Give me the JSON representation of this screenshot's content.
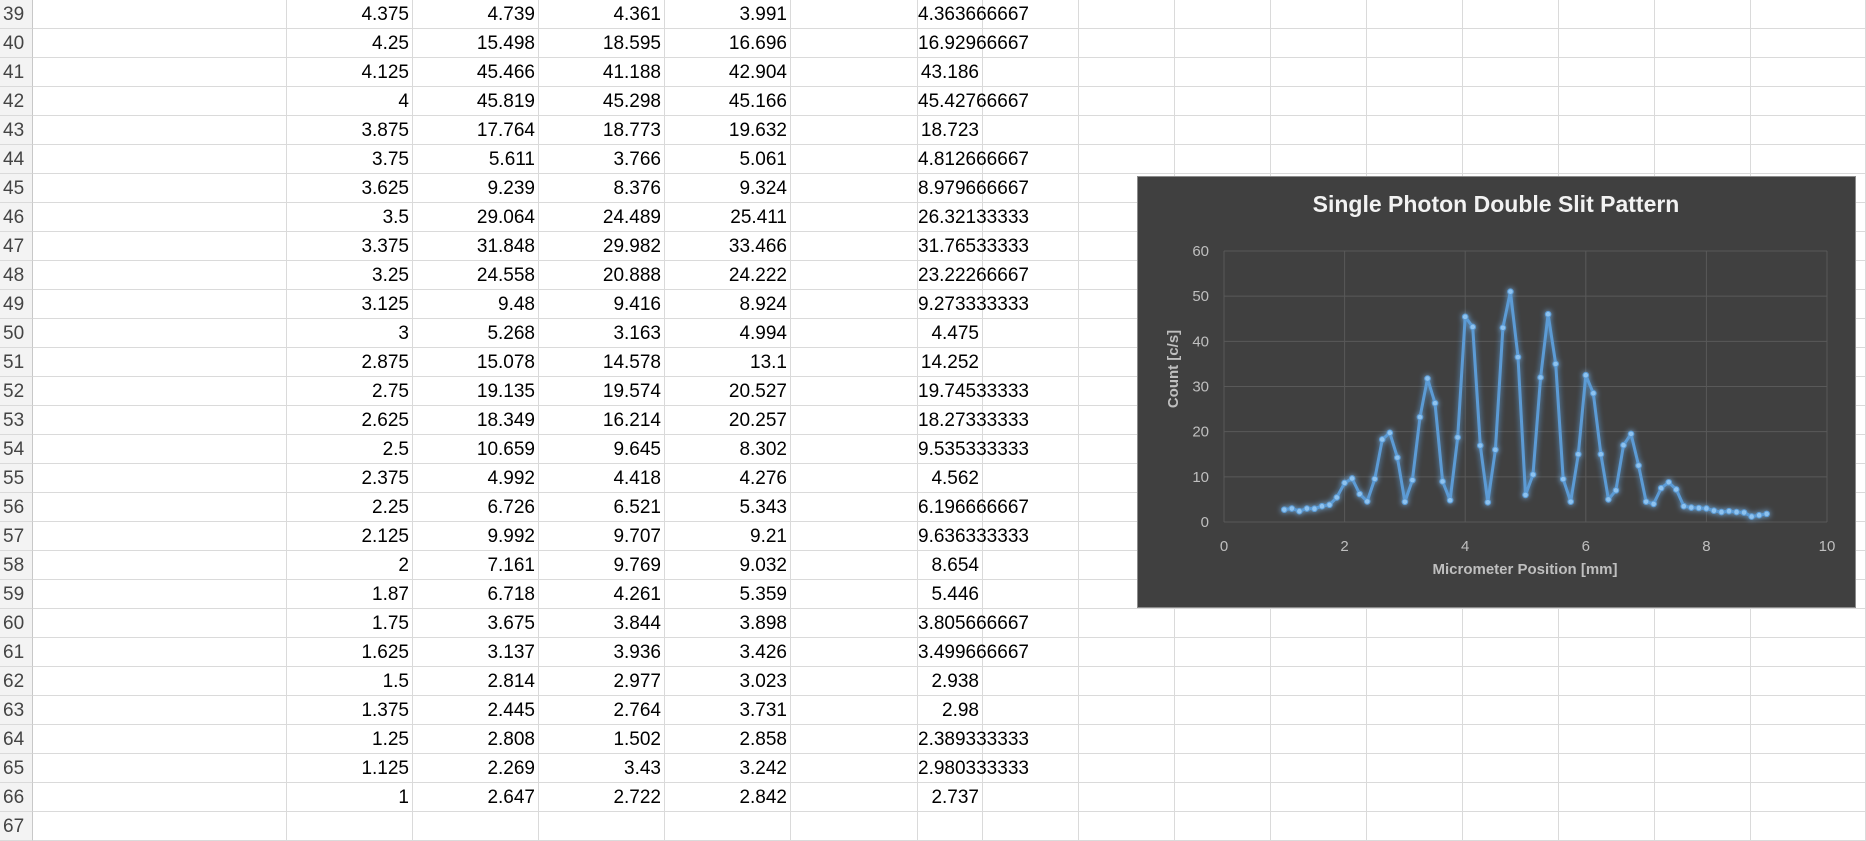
{
  "sheet": {
    "rows": [
      {
        "n": "39",
        "cells": [
          "",
          "4.375",
          "4.739",
          "4.361",
          "3.991",
          "",
          "4.363666667"
        ]
      },
      {
        "n": "40",
        "cells": [
          "",
          "4.25",
          "15.498",
          "18.595",
          "16.696",
          "",
          "16.92966667"
        ]
      },
      {
        "n": "41",
        "cells": [
          "",
          "4.125",
          "45.466",
          "41.188",
          "42.904",
          "",
          "43.186"
        ]
      },
      {
        "n": "42",
        "cells": [
          "",
          "4",
          "45.819",
          "45.298",
          "45.166",
          "",
          "45.42766667"
        ]
      },
      {
        "n": "43",
        "cells": [
          "",
          "3.875",
          "17.764",
          "18.773",
          "19.632",
          "",
          "18.723"
        ]
      },
      {
        "n": "44",
        "cells": [
          "",
          "3.75",
          "5.611",
          "3.766",
          "5.061",
          "",
          "4.812666667"
        ]
      },
      {
        "n": "45",
        "cells": [
          "",
          "3.625",
          "9.239",
          "8.376",
          "9.324",
          "",
          "8.979666667"
        ]
      },
      {
        "n": "46",
        "cells": [
          "",
          "3.5",
          "29.064",
          "24.489",
          "25.411",
          "",
          "26.32133333"
        ]
      },
      {
        "n": "47",
        "cells": [
          "",
          "3.375",
          "31.848",
          "29.982",
          "33.466",
          "",
          "31.76533333"
        ]
      },
      {
        "n": "48",
        "cells": [
          "",
          "3.25",
          "24.558",
          "20.888",
          "24.222",
          "",
          "23.22266667"
        ]
      },
      {
        "n": "49",
        "cells": [
          "",
          "3.125",
          "9.48",
          "9.416",
          "8.924",
          "",
          "9.273333333"
        ]
      },
      {
        "n": "50",
        "cells": [
          "",
          "3",
          "5.268",
          "3.163",
          "4.994",
          "",
          "4.475"
        ]
      },
      {
        "n": "51",
        "cells": [
          "",
          "2.875",
          "15.078",
          "14.578",
          "13.1",
          "",
          "14.252"
        ]
      },
      {
        "n": "52",
        "cells": [
          "",
          "2.75",
          "19.135",
          "19.574",
          "20.527",
          "",
          "19.74533333"
        ]
      },
      {
        "n": "53",
        "cells": [
          "",
          "2.625",
          "18.349",
          "16.214",
          "20.257",
          "",
          "18.27333333"
        ]
      },
      {
        "n": "54",
        "cells": [
          "",
          "2.5",
          "10.659",
          "9.645",
          "8.302",
          "",
          "9.535333333"
        ]
      },
      {
        "n": "55",
        "cells": [
          "",
          "2.375",
          "4.992",
          "4.418",
          "4.276",
          "",
          "4.562"
        ]
      },
      {
        "n": "56",
        "cells": [
          "",
          "2.25",
          "6.726",
          "6.521",
          "5.343",
          "",
          "6.196666667"
        ]
      },
      {
        "n": "57",
        "cells": [
          "",
          "2.125",
          "9.992",
          "9.707",
          "9.21",
          "",
          "9.636333333"
        ]
      },
      {
        "n": "58",
        "cells": [
          "",
          "2",
          "7.161",
          "9.769",
          "9.032",
          "",
          "8.654"
        ]
      },
      {
        "n": "59",
        "cells": [
          "",
          "1.87",
          "6.718",
          "4.261",
          "5.359",
          "",
          "5.446"
        ]
      },
      {
        "n": "60",
        "cells": [
          "",
          "1.75",
          "3.675",
          "3.844",
          "3.898",
          "",
          "3.805666667"
        ]
      },
      {
        "n": "61",
        "cells": [
          "",
          "1.625",
          "3.137",
          "3.936",
          "3.426",
          "",
          "3.499666667"
        ]
      },
      {
        "n": "62",
        "cells": [
          "",
          "1.5",
          "2.814",
          "2.977",
          "3.023",
          "",
          "2.938"
        ]
      },
      {
        "n": "63",
        "cells": [
          "",
          "1.375",
          "2.445",
          "2.764",
          "3.731",
          "",
          "2.98"
        ]
      },
      {
        "n": "64",
        "cells": [
          "",
          "1.25",
          "2.808",
          "1.502",
          "2.858",
          "",
          "2.389333333"
        ]
      },
      {
        "n": "65",
        "cells": [
          "",
          "1.125",
          "2.269",
          "3.43",
          "3.242",
          "",
          "2.980333333"
        ]
      },
      {
        "n": "66",
        "cells": [
          "",
          "1",
          "2.647",
          "2.722",
          "2.842",
          "",
          "2.737"
        ]
      },
      {
        "n": "67",
        "cells": [
          "",
          "",
          "",
          "",
          "",
          "",
          ""
        ]
      }
    ]
  },
  "colors": {
    "chart_background": "#404040",
    "series_line": "#5b9bd5",
    "grid": "#595959",
    "axis_text": "#bfbfbf",
    "title_text": "#f2f2f2"
  },
  "chart_data": {
    "type": "scatter",
    "title": "Single Photon Double Slit Pattern",
    "xlabel": "Micrometer Position [mm]",
    "ylabel": "Count [c/s]",
    "xlim": [
      0,
      10
    ],
    "ylim": [
      0,
      60
    ],
    "x_ticks": [
      "0",
      "2",
      "4",
      "6",
      "8",
      "10"
    ],
    "y_ticks": [
      "0",
      "10",
      "20",
      "30",
      "40",
      "50",
      "60"
    ],
    "grid": true,
    "legend": "none",
    "series": [
      {
        "x": [
          1,
          1.125,
          1.25,
          1.375,
          1.5,
          1.625,
          1.75,
          1.87,
          2,
          2.125,
          2.25,
          2.375,
          2.5,
          2.625,
          2.75,
          2.875,
          3,
          3.125,
          3.25,
          3.375,
          3.5,
          3.625,
          3.75,
          3.875,
          4,
          4.125,
          4.25,
          4.375,
          4.5,
          4.625,
          4.75,
          4.875,
          5,
          5.125,
          5.25,
          5.375,
          5.5,
          5.625,
          5.75,
          5.875,
          6,
          6.125,
          6.25,
          6.375,
          6.5,
          6.625,
          6.75,
          6.875,
          7,
          7.125,
          7.25,
          7.375,
          7.5,
          7.625,
          7.75,
          7.875,
          8,
          8.125,
          8.25,
          8.375,
          8.5,
          8.625,
          8.75,
          8.875,
          9
        ],
        "y": [
          2.737,
          2.98,
          2.389,
          2.98,
          2.938,
          3.5,
          3.806,
          5.446,
          8.654,
          9.636,
          6.197,
          4.562,
          9.535,
          18.273,
          19.745,
          14.252,
          4.475,
          9.273,
          23.223,
          31.765,
          26.321,
          8.98,
          4.813,
          18.723,
          45.428,
          43.186,
          16.93,
          4.364,
          16,
          43,
          51,
          36.5,
          6,
          10.5,
          32,
          46,
          35,
          9.5,
          4.5,
          15,
          32.5,
          28.5,
          15,
          5,
          7,
          17,
          19.5,
          12.5,
          4.5,
          4,
          7.5,
          8.8,
          7.2,
          3.5,
          3.2,
          3.1,
          3,
          2.5,
          2.2,
          2.4,
          2.2,
          2.1,
          1.2,
          1.5,
          1.8
        ]
      }
    ]
  }
}
